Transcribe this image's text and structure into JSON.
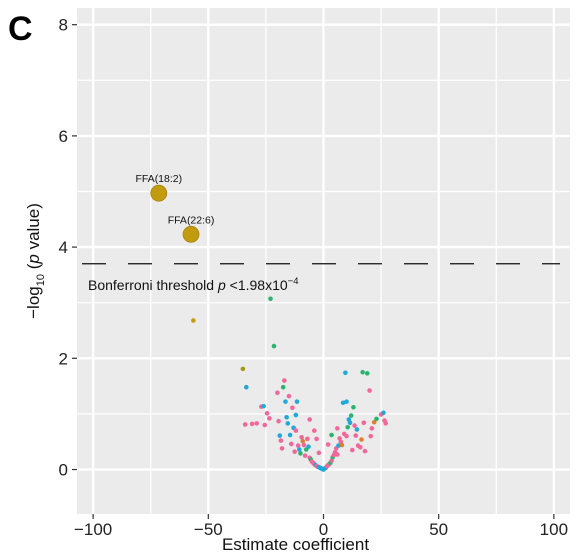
{
  "panel_label": "C",
  "chart_data": {
    "type": "scatter",
    "title": "",
    "xlabel": "Estimate coefficient",
    "ylabel_parts": [
      "−log",
      "10",
      " (",
      "p",
      " value)"
    ],
    "xlim": [
      -107,
      107
    ],
    "ylim": [
      -0.8,
      8.3
    ],
    "x_ticks": [
      -100,
      -50,
      0,
      50,
      100
    ],
    "x_tick_labels": [
      "−100",
      "−50",
      "0",
      "50",
      "100"
    ],
    "y_ticks": [
      0,
      2,
      4,
      6,
      8
    ],
    "y_tick_labels": [
      "0",
      "2",
      "4",
      "6",
      "8"
    ],
    "grid": true,
    "background": "#ebebeb",
    "threshold": {
      "y": 3.7,
      "label_parts": [
        "Bonferroni threshold ",
        "p",
        " <1.98x10",
        "−4"
      ]
    },
    "colors": {
      "gold": "#c39b0f",
      "pink": "#f2679a",
      "blue": "#1fa8d9",
      "green": "#2bb46f",
      "orange": "#e07f2b",
      "olive": "#a39a14"
    },
    "highlighted": [
      {
        "x": -71.5,
        "y": 4.97,
        "label": "FFA(18:2)"
      },
      {
        "x": -57.5,
        "y": 4.23,
        "label": "FFA(22:6)"
      }
    ],
    "points": [
      [
        -56.5,
        2.68,
        "gold"
      ],
      [
        -35,
        1.81,
        "olive"
      ],
      [
        -33.5,
        1.48,
        "blue"
      ],
      [
        -34,
        0.81,
        "pink"
      ],
      [
        -31,
        0.82,
        "pink"
      ],
      [
        -29,
        0.83,
        "pink"
      ],
      [
        -27,
        1.13,
        "pink"
      ],
      [
        -26,
        1.14,
        "blue"
      ],
      [
        -25.5,
        0.8,
        "pink"
      ],
      [
        -24.5,
        1.01,
        "pink"
      ],
      [
        -23.5,
        0.92,
        "pink"
      ],
      [
        -23,
        3.07,
        "green"
      ],
      [
        -21.5,
        2.22,
        "green"
      ],
      [
        -20,
        1.38,
        "pink"
      ],
      [
        -19.5,
        0.87,
        "pink"
      ],
      [
        -19,
        0.61,
        "blue"
      ],
      [
        -18.5,
        0.52,
        "pink"
      ],
      [
        -18,
        0.38,
        "pink"
      ],
      [
        -17.5,
        1.48,
        "green"
      ],
      [
        -17,
        1.6,
        "pink"
      ],
      [
        -16.5,
        1.22,
        "blue"
      ],
      [
        -16,
        0.94,
        "blue"
      ],
      [
        -15.5,
        0.83,
        "blue"
      ],
      [
        -15,
        1.32,
        "pink"
      ],
      [
        -14.5,
        0.62,
        "blue"
      ],
      [
        -14,
        0.46,
        "pink"
      ],
      [
        -13.5,
        1.11,
        "pink"
      ],
      [
        -13,
        0.75,
        "blue"
      ],
      [
        -12.5,
        0.32,
        "pink"
      ],
      [
        -12,
        0.98,
        "blue"
      ],
      [
        -11.5,
        1.22,
        "blue"
      ],
      [
        -11,
        0.43,
        "pink"
      ],
      [
        -10.5,
        0.36,
        "blue"
      ],
      [
        -10,
        0.29,
        "green"
      ],
      [
        -9.5,
        0.58,
        "pink"
      ],
      [
        -9,
        0.51,
        "orange"
      ],
      [
        -8.5,
        0.44,
        "pink"
      ],
      [
        -8,
        0.25,
        "pink"
      ],
      [
        -7.5,
        0.36,
        "green"
      ],
      [
        -7,
        0.55,
        "pink"
      ],
      [
        -6.5,
        0.41,
        "blue"
      ],
      [
        -6,
        0.21,
        "pink"
      ],
      [
        -5.5,
        0.18,
        "green"
      ],
      [
        -5,
        0.14,
        "pink"
      ],
      [
        -4.5,
        0.12,
        "pink"
      ],
      [
        -4,
        0.1,
        "pink"
      ],
      [
        -3.5,
        0.08,
        "blue"
      ],
      [
        -3,
        0.06,
        "pink"
      ],
      [
        -2.5,
        0.05,
        "pink"
      ],
      [
        -2,
        0.04,
        "blue"
      ],
      [
        -1.5,
        0.03,
        "blue"
      ],
      [
        -1,
        0.02,
        "blue"
      ],
      [
        -0.5,
        0.01,
        "blue"
      ],
      [
        0,
        0.0,
        "blue"
      ],
      [
        0.5,
        0.02,
        "blue"
      ],
      [
        1,
        0.03,
        "blue"
      ],
      [
        1.5,
        0.06,
        "pink"
      ],
      [
        2,
        0.08,
        "pink"
      ],
      [
        2.5,
        0.1,
        "pink"
      ],
      [
        3,
        0.12,
        "green"
      ],
      [
        3.5,
        0.16,
        "pink"
      ],
      [
        4,
        0.22,
        "green"
      ],
      [
        4.5,
        0.26,
        "pink"
      ],
      [
        5,
        0.31,
        "pink"
      ],
      [
        5.5,
        0.38,
        "pink"
      ],
      [
        6,
        0.27,
        "pink"
      ],
      [
        6.5,
        0.43,
        "blue"
      ],
      [
        7,
        0.56,
        "pink"
      ],
      [
        7.5,
        0.5,
        "pink"
      ],
      [
        8,
        0.44,
        "orange"
      ],
      [
        8.5,
        1.2,
        "blue"
      ],
      [
        9,
        0.64,
        "pink"
      ],
      [
        9.5,
        1.74,
        "blue"
      ],
      [
        10,
        1.22,
        "blue"
      ],
      [
        10.5,
        0.76,
        "green"
      ],
      [
        11,
        0.9,
        "blue"
      ],
      [
        11.5,
        0.84,
        "blue"
      ],
      [
        12,
        0.97,
        "green"
      ],
      [
        12.5,
        0.35,
        "pink"
      ],
      [
        13,
        1.12,
        "green"
      ],
      [
        13.5,
        0.79,
        "pink"
      ],
      [
        14,
        0.61,
        "pink"
      ],
      [
        14.5,
        0.72,
        "blue"
      ],
      [
        15,
        0.43,
        "pink"
      ],
      [
        16,
        0.4,
        "pink"
      ],
      [
        16.5,
        0.54,
        "orange"
      ],
      [
        17,
        1.75,
        "green"
      ],
      [
        17.5,
        0.84,
        "pink"
      ],
      [
        18,
        0.33,
        "pink"
      ],
      [
        19,
        1.73,
        "green"
      ],
      [
        20,
        1.42,
        "pink"
      ],
      [
        20.5,
        0.6,
        "pink"
      ],
      [
        21,
        0.74,
        "pink"
      ],
      [
        22,
        0.85,
        "orange"
      ],
      [
        23,
        0.91,
        "green"
      ],
      [
        25,
        0.99,
        "pink"
      ],
      [
        26,
        1.02,
        "blue"
      ],
      [
        26.5,
        0.88,
        "pink"
      ],
      [
        27,
        0.83,
        "pink"
      ],
      [
        -4,
        0.7,
        "pink"
      ],
      [
        -3,
        0.55,
        "pink"
      ],
      [
        -2,
        0.3,
        "pink"
      ],
      [
        2,
        0.45,
        "pink"
      ],
      [
        3.5,
        0.62,
        "green"
      ],
      [
        6,
        0.74,
        "pink"
      ],
      [
        -6,
        0.9,
        "pink"
      ],
      [
        10,
        0.6,
        "pink"
      ],
      [
        -12,
        0.7,
        "pink"
      ]
    ]
  }
}
